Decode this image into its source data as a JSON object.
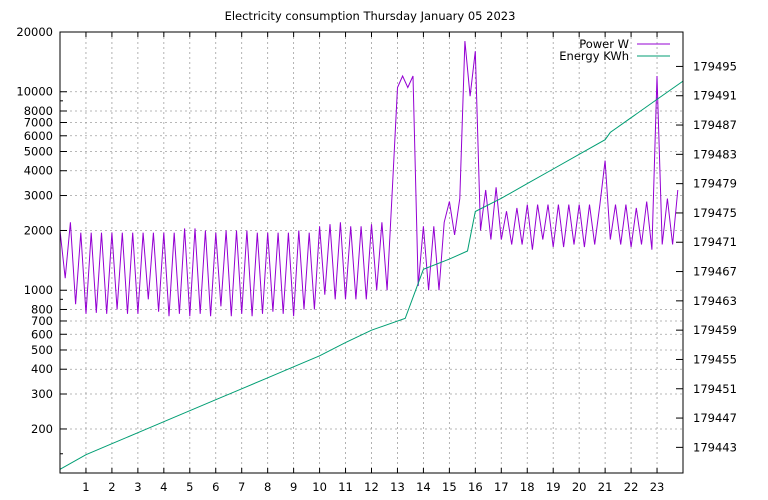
{
  "chart_data": {
    "type": "line",
    "title": "Electricity consumption Thursday January 05 2023",
    "xlabel": "",
    "ylabel": "",
    "x_ticks": [
      "1",
      "2",
      "3",
      "4",
      "5",
      "6",
      "7",
      "8",
      "9",
      "10",
      "11",
      "12",
      "13",
      "14",
      "15",
      "16",
      "17",
      "18",
      "19",
      "20",
      "21",
      "22",
      "23"
    ],
    "xlim": [
      0,
      24
    ],
    "y_left": {
      "scale": "log",
      "lim": [
        120,
        20000
      ],
      "ticks": [
        200,
        300,
        400,
        500,
        600,
        700,
        800,
        1000,
        2000,
        3000,
        4000,
        5000,
        6000,
        7000,
        8000,
        10000,
        20000
      ],
      "tick_labels": [
        "200",
        "300",
        "400",
        "500",
        "600",
        "700",
        "800",
        "1000",
        "2000",
        "3000",
        "4000",
        "5000",
        "6000",
        "7000",
        "8000",
        "10000",
        "20000"
      ]
    },
    "y_right": {
      "scale": "linear",
      "lim": [
        179439.5,
        179499.7
      ],
      "ticks": [
        179443,
        179447,
        179451,
        179455,
        179459,
        179463,
        179467,
        179471,
        179475,
        179479,
        179483,
        179487,
        179491,
        179495
      ],
      "tick_labels": [
        "179443",
        "179447",
        "179451",
        "179455",
        "179459",
        "179463",
        "179467",
        "179471",
        "179475",
        "179479",
        "179483",
        "179487",
        "179491",
        "179495"
      ]
    },
    "grid": true,
    "legend_position": "top-right",
    "series": [
      {
        "name": "Power W",
        "axis": "left",
        "color": "#9400d3",
        "x": [
          0,
          0.2,
          0.4,
          0.6,
          0.8,
          1.0,
          1.2,
          1.4,
          1.6,
          1.8,
          2.0,
          2.2,
          2.4,
          2.6,
          2.8,
          3.0,
          3.2,
          3.4,
          3.6,
          3.8,
          4.0,
          4.2,
          4.4,
          4.6,
          4.8,
          5.0,
          5.2,
          5.4,
          5.6,
          5.8,
          6.0,
          6.2,
          6.4,
          6.6,
          6.8,
          7.0,
          7.2,
          7.4,
          7.6,
          7.8,
          8.0,
          8.2,
          8.4,
          8.6,
          8.8,
          9.0,
          9.2,
          9.4,
          9.6,
          9.8,
          10.0,
          10.2,
          10.4,
          10.6,
          10.8,
          11.0,
          11.2,
          11.4,
          11.6,
          11.8,
          12.0,
          12.2,
          12.4,
          12.6,
          12.8,
          13.0,
          13.2,
          13.4,
          13.6,
          13.8,
          14.0,
          14.2,
          14.4,
          14.6,
          14.8,
          15.0,
          15.2,
          15.4,
          15.6,
          15.8,
          16.0,
          16.2,
          16.4,
          16.6,
          16.8,
          17.0,
          17.2,
          17.4,
          17.6,
          17.8,
          18.0,
          18.2,
          18.4,
          18.6,
          18.8,
          19.0,
          19.2,
          19.4,
          19.6,
          19.8,
          20.0,
          20.2,
          20.4,
          20.6,
          20.8,
          21.0,
          21.2,
          21.4,
          21.6,
          21.8,
          22.0,
          22.2,
          22.4,
          22.6,
          22.8,
          23.0,
          23.2,
          23.4,
          23.6,
          23.8
        ],
        "values": [
          2000,
          1150,
          2200,
          850,
          1950,
          760,
          1950,
          770,
          1950,
          760,
          1950,
          800,
          1950,
          760,
          1950,
          760,
          1950,
          900,
          1950,
          780,
          1950,
          740,
          1950,
          760,
          2050,
          740,
          2050,
          760,
          2000,
          740,
          1950,
          830,
          2000,
          740,
          2000,
          760,
          2000,
          740,
          1950,
          760,
          1950,
          780,
          1950,
          760,
          1950,
          740,
          2000,
          800,
          1950,
          800,
          2100,
          950,
          2150,
          900,
          2200,
          900,
          2100,
          900,
          2100,
          900,
          2150,
          1000,
          2200,
          1000,
          3200,
          10500,
          12000,
          10500,
          12000,
          1050,
          2100,
          1000,
          2100,
          1000,
          2200,
          2800,
          1900,
          2900,
          18000,
          9500,
          16000,
          2000,
          3200,
          1800,
          3300,
          1800,
          2500,
          1700,
          2600,
          1700,
          2700,
          1600,
          2700,
          1800,
          2700,
          1650,
          2700,
          1650,
          2700,
          1700,
          2700,
          1650,
          2700,
          1700,
          2700,
          4500,
          1800,
          2700,
          1700,
          2700,
          1650,
          2600,
          1700,
          2800,
          1600,
          12000,
          1700,
          2900,
          1700,
          3200
        ]
      },
      {
        "name": "Energy KWh",
        "axis": "right",
        "color": "#009e73",
        "x": [
          0,
          1,
          2,
          3,
          4,
          5,
          6,
          7,
          8,
          9,
          10,
          11,
          12,
          13.3,
          14,
          15,
          15.7,
          16,
          17,
          18,
          19,
          20,
          21,
          21.2,
          22,
          23,
          24
        ],
        "values": [
          179440,
          179442,
          179443.5,
          179445,
          179446.5,
          179448,
          179449.5,
          179451,
          179452.5,
          179454,
          179455.5,
          179457.3,
          179459,
          179460.6,
          179467.3,
          179468.7,
          179469.8,
          179475.2,
          179477,
          179479,
          179481,
          179483,
          179485,
          179486,
          179488,
          179490.5,
          179493
        ]
      }
    ]
  }
}
